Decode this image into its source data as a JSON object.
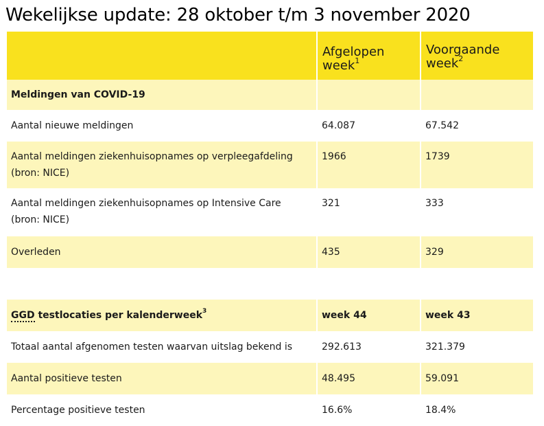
{
  "title": "Wekelijkse update: 28 oktober t/m 3 november 2020",
  "colors": {
    "header_yellow": "#f9e11e",
    "row_light_yellow": "#fdf6bb"
  },
  "table": {
    "header": {
      "label": "",
      "col_a": "Afgelopen week",
      "col_a_sup": "1",
      "col_b": "Voorgaande week",
      "col_b_sup": "2"
    },
    "section_covid": {
      "label": "Meldingen van COVID-19",
      "col_a": "",
      "col_b": ""
    },
    "covid_rows": [
      {
        "label": "Aantal nieuwe meldingen",
        "col_a": "64.087",
        "col_b": "67.542"
      },
      {
        "label": "Aantal meldingen ziekenhuisopnames op verpleegafdeling (bron: NICE)",
        "col_a": "1966",
        "col_b": "1739"
      },
      {
        "label": "Aantal meldingen ziekenhuisopnames op Intensive Care (bron: NICE)",
        "col_a": "321",
        "col_b": "333"
      },
      {
        "label": "Overleden",
        "col_a": "435",
        "col_b": "329"
      }
    ],
    "section_ggd": {
      "label_abbr": "GGD",
      "label_rest": " testlocaties per kalenderweek",
      "label_sup": "3",
      "col_a": "week 44",
      "col_b": "week 43"
    },
    "ggd_rows": [
      {
        "label": "Totaal aantal afgenomen testen waarvan uitslag bekend is",
        "col_a": "292.613",
        "col_b": "321.379"
      },
      {
        "label": "Aantal positieve testen",
        "col_a": "48.495",
        "col_b": "59.091"
      },
      {
        "label": "Percentage positieve testen",
        "col_a": "16.6%",
        "col_b": "18.4%"
      }
    ]
  }
}
